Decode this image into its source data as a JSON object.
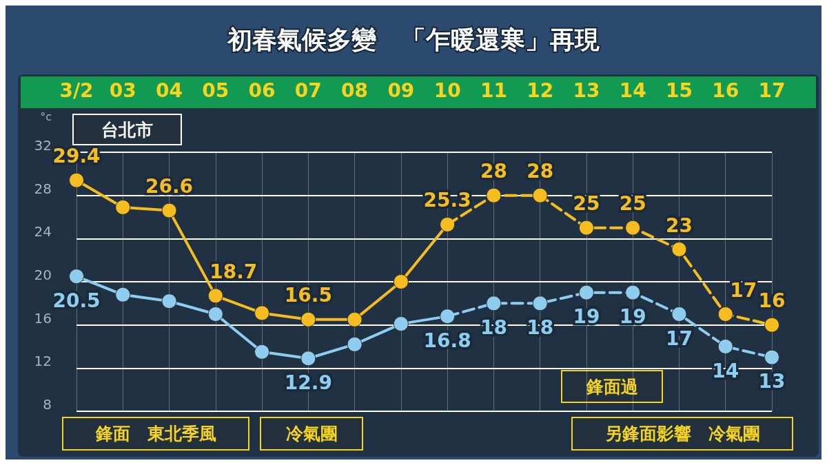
{
  "chart_data": {
    "type": "line",
    "title": "初春氣候多變　「乍暖還寒」再現",
    "ylabel": "°c",
    "categories": [
      "3/2",
      "03",
      "04",
      "05",
      "06",
      "07",
      "08",
      "09",
      "10",
      "11",
      "12",
      "13",
      "14",
      "15",
      "16",
      "17"
    ],
    "series": [
      {
        "color": "#f5bd1f",
        "line_style": "solid",
        "values": [
          29.4,
          26.9,
          26.6,
          18.7,
          17.1,
          16.5,
          16.5,
          20,
          25.3,
          null,
          null,
          null,
          null,
          null,
          null,
          null
        ],
        "value_labels": [
          "29.4",
          null,
          "26.6",
          "18.7",
          null,
          "16.5",
          null,
          null,
          "25.3",
          null,
          null,
          null,
          null,
          null,
          null,
          null
        ]
      },
      {
        "color": "#f5bd1f",
        "line_style": "dashed",
        "values": [
          null,
          null,
          null,
          null,
          null,
          null,
          null,
          null,
          25.3,
          28,
          28,
          25,
          25,
          23,
          17,
          16
        ],
        "value_labels": [
          null,
          null,
          null,
          null,
          null,
          null,
          null,
          null,
          null,
          "28",
          "28",
          "25",
          "25",
          "23",
          "17",
          "16"
        ]
      },
      {
        "color": "#8ecdf0",
        "line_style": "solid",
        "values": [
          20.5,
          18.8,
          18.2,
          17,
          13.5,
          12.9,
          14.2,
          16.1,
          16.8,
          null,
          null,
          null,
          null,
          null,
          null,
          null
        ],
        "value_labels": [
          "20.5",
          null,
          null,
          null,
          null,
          "12.9",
          null,
          null,
          "16.8",
          null,
          null,
          null,
          null,
          null,
          null,
          null
        ]
      },
      {
        "color": "#8ecdf0",
        "line_style": "dashed",
        "values": [
          null,
          null,
          null,
          null,
          null,
          null,
          null,
          null,
          16.8,
          18,
          18,
          19,
          19,
          17,
          14,
          13
        ],
        "value_labels": [
          null,
          null,
          null,
          null,
          null,
          null,
          null,
          null,
          null,
          "18",
          "18",
          "19",
          "19",
          "17",
          "14",
          "13"
        ]
      }
    ],
    "ylim": [
      8,
      32
    ],
    "yticks": [
      8,
      12,
      16,
      20,
      24,
      28,
      32
    ],
    "grid": true,
    "marker": "circle",
    "annotations": [
      "台北市",
      "鋒面　東北季風",
      "冷氣團",
      "鋒面過",
      "另鋒面影響　冷氣團"
    ]
  }
}
